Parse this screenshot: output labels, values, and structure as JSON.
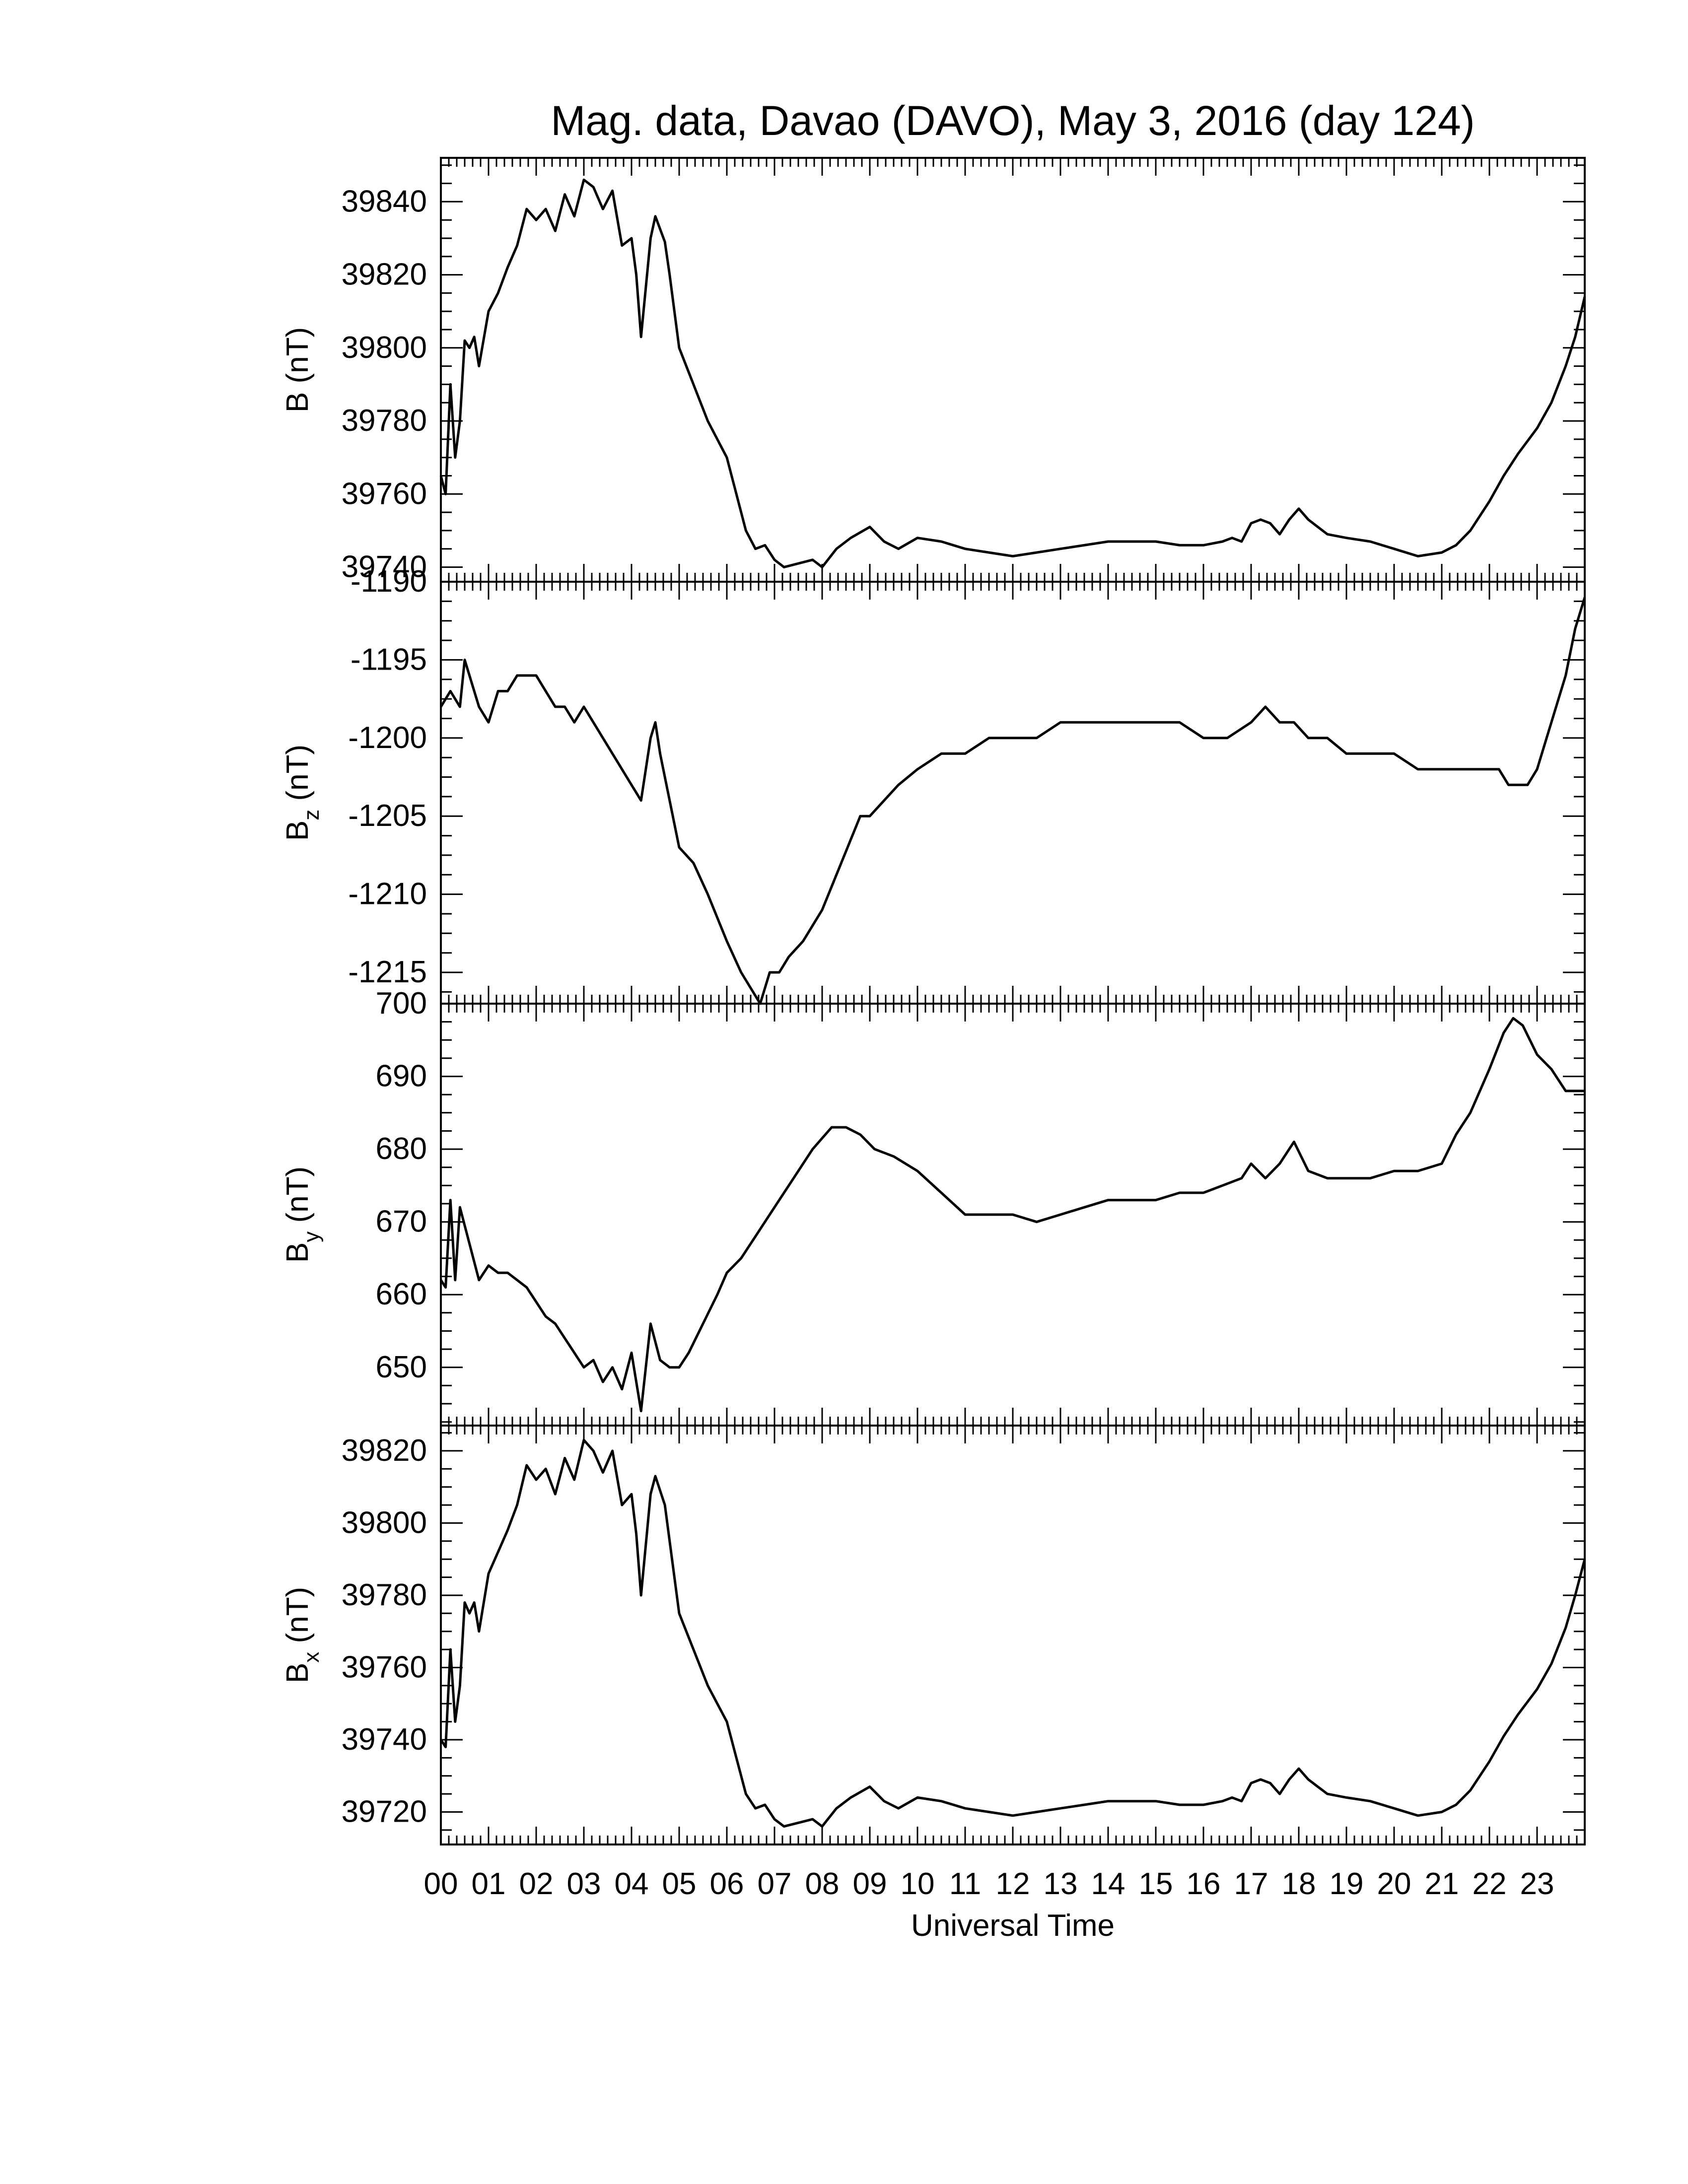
{
  "figure": {
    "title": "Mag. data, Davao (DAVO), May 3, 2016 (day 124)",
    "xlabel": "Universal Time",
    "x_tick_labels": [
      "00",
      "01",
      "02",
      "03",
      "04",
      "05",
      "06",
      "07",
      "08",
      "09",
      "10",
      "11",
      "12",
      "13",
      "14",
      "15",
      "16",
      "17",
      "18",
      "19",
      "20",
      "21",
      "22",
      "23"
    ]
  },
  "chart_data": [
    {
      "type": "line",
      "ylabel": "B (nT)",
      "ylabel_base": "B",
      "ylabel_sub": "",
      "ylabel_unit": " (nT)",
      "xlim": [
        0,
        24
      ],
      "ylim": [
        39736,
        39852
      ],
      "yticks": [
        39740,
        39760,
        39780,
        39800,
        39820,
        39840
      ],
      "series": [
        {
          "x": [
            0.0,
            0.1,
            0.2,
            0.3,
            0.4,
            0.5,
            0.6,
            0.7,
            0.8,
            1.0,
            1.2,
            1.4,
            1.6,
            1.8,
            2.0,
            2.2,
            2.4,
            2.6,
            2.8,
            3.0,
            3.2,
            3.4,
            3.6,
            3.8,
            4.0,
            4.1,
            4.2,
            4.4,
            4.5,
            4.7,
            4.8,
            5.0,
            5.3,
            5.6,
            6.0,
            6.2,
            6.4,
            6.6,
            6.8,
            7.0,
            7.2,
            7.5,
            7.8,
            8.0,
            8.3,
            8.6,
            9.0,
            9.3,
            9.6,
            10.0,
            10.5,
            11.0,
            11.5,
            12.0,
            12.5,
            13.0,
            13.5,
            14.0,
            14.5,
            15.0,
            15.5,
            16.0,
            16.4,
            16.6,
            16.8,
            17.0,
            17.2,
            17.4,
            17.6,
            17.8,
            18.0,
            18.2,
            18.4,
            18.6,
            19.0,
            19.5,
            20.0,
            20.5,
            21.0,
            21.3,
            21.6,
            22.0,
            22.3,
            22.6,
            23.0,
            23.3,
            23.6,
            23.8,
            24.0
          ],
          "y": [
            39765,
            39760,
            39790,
            39770,
            39780,
            39802,
            39800,
            39803,
            39795,
            39810,
            39815,
            39822,
            39828,
            39838,
            39835,
            39838,
            39832,
            39842,
            39836,
            39846,
            39844,
            39838,
            39843,
            39828,
            39830,
            39820,
            39803,
            39830,
            39836,
            39829,
            39820,
            39800,
            39790,
            39780,
            39770,
            39760,
            39750,
            39745,
            39746,
            39742,
            39740,
            39741,
            39742,
            39740,
            39745,
            39748,
            39751,
            39747,
            39745,
            39748,
            39747,
            39745,
            39744,
            39743,
            39744,
            39745,
            39746,
            39747,
            39747,
            39747,
            39746,
            39746,
            39747,
            39748,
            39747,
            39752,
            39753,
            39752,
            39749,
            39753,
            39756,
            39753,
            39751,
            39749,
            39748,
            39747,
            39745,
            39743,
            39744,
            39746,
            39750,
            39758,
            39765,
            39771,
            39778,
            39785,
            39795,
            39803,
            39814
          ]
        }
      ]
    },
    {
      "type": "line",
      "ylabel": "Bz (nT)",
      "ylabel_base": "B",
      "ylabel_sub": "z",
      "ylabel_unit": " (nT)",
      "xlim": [
        0,
        24
      ],
      "ylim": [
        -1217,
        -1190
      ],
      "yticks": [
        -1190,
        -1195,
        -1200,
        -1205,
        -1210,
        -1215
      ],
      "series": [
        {
          "x": [
            0.0,
            0.2,
            0.4,
            0.5,
            0.6,
            0.8,
            1.0,
            1.2,
            1.4,
            1.6,
            1.8,
            2.0,
            2.2,
            2.4,
            2.6,
            2.8,
            3.0,
            3.2,
            3.4,
            3.6,
            3.8,
            4.0,
            4.2,
            4.4,
            4.5,
            4.6,
            4.8,
            5.0,
            5.3,
            5.6,
            6.0,
            6.3,
            6.5,
            6.7,
            6.9,
            7.1,
            7.3,
            7.6,
            8.0,
            8.4,
            8.8,
            9.0,
            9.3,
            9.6,
            10.0,
            10.5,
            11.0,
            11.5,
            12.0,
            12.5,
            13.0,
            13.5,
            14.0,
            14.5,
            15.0,
            15.5,
            16.0,
            16.5,
            17.0,
            17.3,
            17.6,
            17.9,
            18.2,
            18.6,
            19.0,
            19.5,
            20.0,
            20.5,
            21.0,
            21.5,
            22.0,
            22.2,
            22.4,
            22.6,
            22.8,
            23.0,
            23.3,
            23.6,
            23.8,
            24.0
          ],
          "y": [
            -1198,
            -1197,
            -1198,
            -1195,
            -1196,
            -1198,
            -1199,
            -1197,
            -1197,
            -1196,
            -1196,
            -1196,
            -1197,
            -1198,
            -1198,
            -1199,
            -1198,
            -1199,
            -1200,
            -1201,
            -1202,
            -1203,
            -1204,
            -1200,
            -1199,
            -1201,
            -1204,
            -1207,
            -1208,
            -1210,
            -1213,
            -1215,
            -1216,
            -1217,
            -1215,
            -1215,
            -1214,
            -1213,
            -1211,
            -1208,
            -1205,
            -1205,
            -1204,
            -1203,
            -1202,
            -1201,
            -1201,
            -1200,
            -1200,
            -1200,
            -1199,
            -1199,
            -1199,
            -1199,
            -1199,
            -1199,
            -1200,
            -1200,
            -1199,
            -1198,
            -1199,
            -1199,
            -1200,
            -1200,
            -1201,
            -1201,
            -1201,
            -1202,
            -1202,
            -1202,
            -1202,
            -1202,
            -1203,
            -1203,
            -1203,
            -1202,
            -1199,
            -1196,
            -1193,
            -1191
          ]
        }
      ]
    },
    {
      "type": "line",
      "ylabel": "By (nT)",
      "ylabel_base": "B",
      "ylabel_sub": "y",
      "ylabel_unit": " (nT)",
      "xlim": [
        0,
        24
      ],
      "ylim": [
        642,
        700
      ],
      "yticks": [
        650,
        660,
        670,
        680,
        690,
        700
      ],
      "series": [
        {
          "x": [
            0.0,
            0.1,
            0.2,
            0.3,
            0.4,
            0.6,
            0.8,
            1.0,
            1.2,
            1.4,
            1.6,
            1.8,
            2.0,
            2.2,
            2.4,
            2.6,
            2.8,
            3.0,
            3.2,
            3.4,
            3.6,
            3.8,
            4.0,
            4.2,
            4.4,
            4.6,
            4.8,
            5.0,
            5.2,
            5.5,
            5.8,
            6.0,
            6.3,
            6.6,
            7.0,
            7.4,
            7.8,
            8.2,
            8.5,
            8.8,
            9.1,
            9.5,
            10.0,
            10.5,
            11.0,
            11.5,
            12.0,
            12.5,
            13.0,
            13.5,
            14.0,
            14.5,
            15.0,
            15.5,
            16.0,
            16.4,
            16.8,
            17.0,
            17.3,
            17.6,
            17.9,
            18.2,
            18.6,
            19.0,
            19.5,
            20.0,
            20.5,
            21.0,
            21.3,
            21.6,
            22.0,
            22.3,
            22.5,
            22.7,
            23.0,
            23.3,
            23.6,
            24.0
          ],
          "y": [
            662,
            661,
            673,
            662,
            672,
            667,
            662,
            664,
            663,
            663,
            662,
            661,
            659,
            657,
            656,
            654,
            652,
            650,
            651,
            648,
            650,
            647,
            652,
            644,
            656,
            651,
            650,
            650,
            652,
            656,
            660,
            663,
            665,
            668,
            672,
            676,
            680,
            683,
            683,
            682,
            680,
            679,
            677,
            674,
            671,
            671,
            671,
            670,
            671,
            672,
            673,
            673,
            673,
            674,
            674,
            675,
            676,
            678,
            676,
            678,
            681,
            677,
            676,
            676,
            676,
            677,
            677,
            678,
            682,
            685,
            691,
            696,
            698,
            697,
            693,
            691,
            688,
            688
          ]
        }
      ]
    },
    {
      "type": "line",
      "ylabel": "Bx (nT)",
      "ylabel_base": "B",
      "ylabel_sub": "x",
      "ylabel_unit": " (nT)",
      "xlim": [
        0,
        24
      ],
      "ylim": [
        39711,
        39827
      ],
      "yticks": [
        39720,
        39740,
        39760,
        39780,
        39800,
        39820
      ],
      "series": [
        {
          "x": [
            0.0,
            0.1,
            0.2,
            0.3,
            0.4,
            0.5,
            0.6,
            0.7,
            0.8,
            1.0,
            1.2,
            1.4,
            1.6,
            1.8,
            2.0,
            2.2,
            2.4,
            2.6,
            2.8,
            3.0,
            3.2,
            3.4,
            3.6,
            3.8,
            4.0,
            4.1,
            4.2,
            4.4,
            4.5,
            4.7,
            4.8,
            5.0,
            5.3,
            5.6,
            6.0,
            6.2,
            6.4,
            6.6,
            6.8,
            7.0,
            7.2,
            7.5,
            7.8,
            8.0,
            8.3,
            8.6,
            9.0,
            9.3,
            9.6,
            10.0,
            10.5,
            11.0,
            11.5,
            12.0,
            12.5,
            13.0,
            13.5,
            14.0,
            14.5,
            15.0,
            15.5,
            16.0,
            16.4,
            16.6,
            16.8,
            17.0,
            17.2,
            17.4,
            17.6,
            17.8,
            18.0,
            18.2,
            18.4,
            18.6,
            19.0,
            19.5,
            20.0,
            20.5,
            21.0,
            21.3,
            21.6,
            22.0,
            22.3,
            22.6,
            23.0,
            23.3,
            23.6,
            23.8,
            24.0
          ],
          "y": [
            39740,
            39738,
            39765,
            39745,
            39755,
            39778,
            39775,
            39778,
            39770,
            39786,
            39792,
            39798,
            39805,
            39816,
            39812,
            39815,
            39808,
            39818,
            39812,
            39823,
            39820,
            39814,
            39820,
            39805,
            39808,
            39797,
            39780,
            39808,
            39813,
            39805,
            39795,
            39775,
            39765,
            39755,
            39745,
            39735,
            39725,
            39721,
            39722,
            39718,
            39716,
            39717,
            39718,
            39716,
            39721,
            39724,
            39727,
            39723,
            39721,
            39724,
            39723,
            39721,
            39720,
            39719,
            39720,
            39721,
            39722,
            39723,
            39723,
            39723,
            39722,
            39722,
            39723,
            39724,
            39723,
            39728,
            39729,
            39728,
            39725,
            39729,
            39732,
            39729,
            39727,
            39725,
            39724,
            39723,
            39721,
            39719,
            39720,
            39722,
            39726,
            39734,
            39741,
            39747,
            39754,
            39761,
            39771,
            39780,
            39790
          ]
        }
      ]
    }
  ]
}
